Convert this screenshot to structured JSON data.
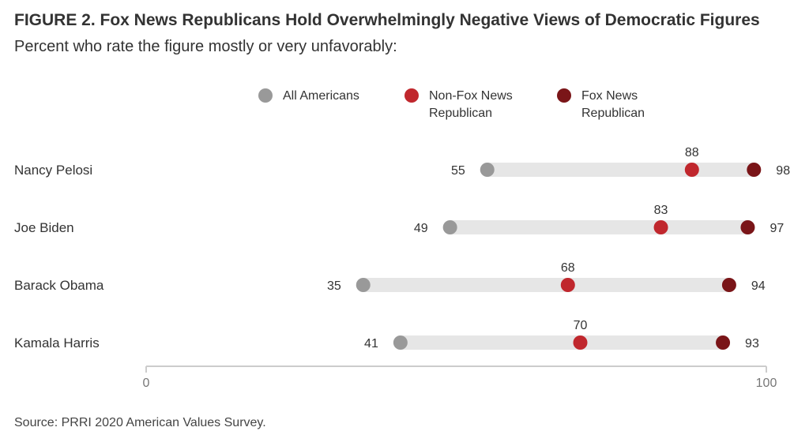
{
  "title": "FIGURE 2. Fox News Republicans Hold Overwhelmingly Negative Views of Democratic Figures",
  "subtitle": "Percent who rate the figure mostly or very unfavorably:",
  "source": "Source: PRRI 2020 American Values Survey.",
  "legend": [
    {
      "lines": [
        "All Americans"
      ],
      "color": "#999999"
    },
    {
      "lines": [
        "Non-Fox News",
        "Republican"
      ],
      "color": "#c0272d"
    },
    {
      "lines": [
        "Fox News",
        "Republican"
      ],
      "color": "#7a1518"
    }
  ],
  "chart_data": {
    "type": "dot",
    "categories": [
      "Nancy Pelosi",
      "Joe Biden",
      "Barack Obama",
      "Kamala Harris"
    ],
    "series": [
      {
        "name": "All Americans",
        "color": "#999999",
        "values": [
          55,
          49,
          35,
          41
        ]
      },
      {
        "name": "Non-Fox News Republican",
        "color": "#c0272d",
        "values": [
          88,
          83,
          68,
          70
        ]
      },
      {
        "name": "Fox News Republican",
        "color": "#7a1518",
        "values": [
          98,
          97,
          94,
          93
        ]
      }
    ],
    "xlim": [
      0,
      100
    ],
    "xticks": [
      "0",
      "100"
    ],
    "legend_position": "top",
    "grid": false
  }
}
